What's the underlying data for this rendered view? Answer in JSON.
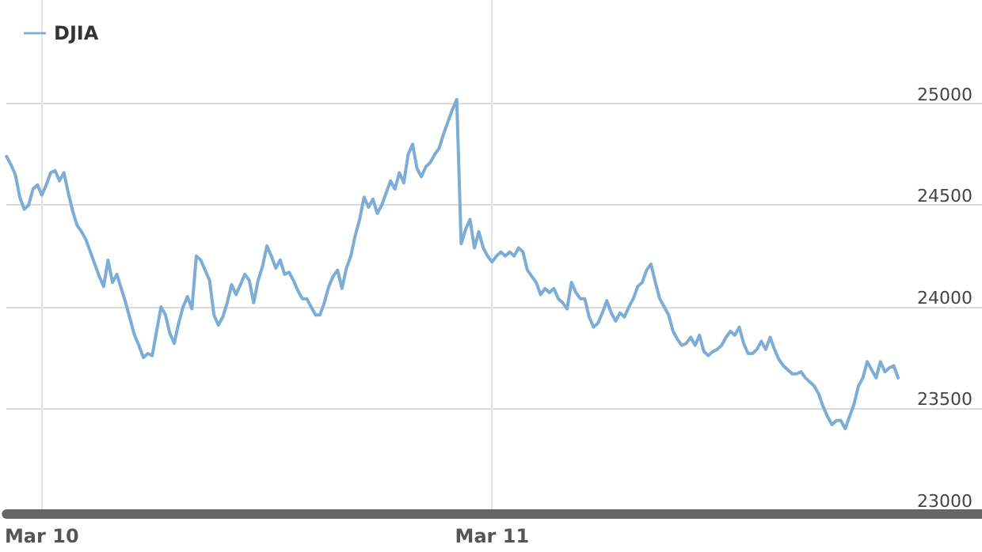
{
  "chart_data": {
    "type": "line",
    "ylim": [
      22980,
      25510
    ],
    "yticks": [
      23000,
      23500,
      24000,
      24500,
      25000
    ],
    "grid": true,
    "legend": "top left",
    "marker": "none",
    "line_style": "solid",
    "categories": [
      null,
      null,
      null,
      null,
      null,
      null,
      null,
      null,
      "Mar 10",
      null,
      null,
      null,
      null,
      null,
      null,
      null,
      null,
      null,
      null,
      null,
      null,
      null,
      null,
      null,
      null,
      null,
      null,
      null,
      null,
      null,
      null,
      null,
      null,
      null,
      null,
      null,
      null,
      null,
      null,
      null,
      null,
      null,
      null,
      null,
      null,
      null,
      null,
      null,
      null,
      null,
      null,
      null,
      null,
      null,
      null,
      null,
      null,
      null,
      null,
      null,
      null,
      null,
      null,
      null,
      null,
      null,
      null,
      null,
      null,
      null,
      null,
      null,
      null,
      null,
      null,
      null,
      null,
      null,
      null,
      null,
      null,
      null,
      null,
      null,
      null,
      null,
      null,
      null,
      null,
      null,
      null,
      null,
      null,
      null,
      null,
      null,
      null,
      null,
      null,
      null,
      null,
      null,
      null,
      null,
      null,
      null,
      null,
      null,
      null,
      null,
      "Mar 11",
      null,
      null,
      null,
      null,
      null,
      null,
      null,
      null,
      null,
      null,
      null,
      null,
      null,
      null,
      null,
      null,
      null,
      null,
      null,
      null,
      null,
      null,
      null,
      null,
      null,
      null,
      null,
      null,
      null,
      null,
      null,
      null,
      null,
      null,
      null,
      null,
      null,
      null,
      null,
      null,
      null,
      null,
      null,
      null,
      null,
      null,
      null,
      null,
      null,
      null,
      null,
      null,
      null,
      null,
      null,
      null,
      null,
      null,
      null,
      null,
      null,
      null,
      null,
      null,
      null,
      null,
      null,
      null,
      null,
      null,
      null,
      null,
      null,
      null,
      null,
      null,
      null,
      null,
      null,
      null,
      null,
      null,
      null,
      null,
      null,
      null,
      null,
      null,
      null,
      null,
      null,
      null,
      null,
      null,
      null,
      null,
      null,
      null,
      null,
      null,
      null,
      null,
      null,
      null,
      null,
      null,
      null,
      null,
      null,
      null,
      null
    ],
    "series": [
      {
        "name": "DJIA",
        "color": "#7badd6",
        "values": [
          24740,
          24700,
          24650,
          24540,
          24480,
          24500,
          24580,
          24600,
          24550,
          24600,
          24660,
          24670,
          24620,
          24660,
          24560,
          24470,
          24400,
          24370,
          24330,
          24270,
          24210,
          24150,
          24100,
          24230,
          24120,
          24160,
          24090,
          24020,
          23940,
          23860,
          23810,
          23750,
          23770,
          23760,
          23880,
          24000,
          23960,
          23870,
          23820,
          23920,
          24000,
          24050,
          23990,
          24250,
          24230,
          24180,
          24130,
          23960,
          23910,
          23950,
          24020,
          24110,
          24060,
          24110,
          24160,
          24130,
          24020,
          24130,
          24200,
          24300,
          24250,
          24190,
          24230,
          24160,
          24170,
          24130,
          24080,
          24040,
          24040,
          24000,
          23960,
          23960,
          24020,
          24100,
          24150,
          24180,
          24090,
          24190,
          24250,
          24350,
          24430,
          24540,
          24490,
          24530,
          24460,
          24500,
          24560,
          24620,
          24580,
          24660,
          24610,
          24750,
          24800,
          24680,
          24640,
          24690,
          24710,
          24750,
          24780,
          24850,
          24910,
          24970,
          25020,
          24310,
          24380,
          24430,
          24290,
          24370,
          24290,
          24250,
          24220,
          24250,
          24270,
          24250,
          24270,
          24250,
          24290,
          24270,
          24180,
          24150,
          24120,
          24060,
          24090,
          24070,
          24090,
          24040,
          24020,
          23990,
          24120,
          24070,
          24040,
          24040,
          23950,
          23900,
          23920,
          23970,
          24030,
          23970,
          23930,
          23970,
          23950,
          24000,
          24040,
          24100,
          24120,
          24180,
          24210,
          24120,
          24040,
          24000,
          23960,
          23880,
          23840,
          23810,
          23820,
          23850,
          23810,
          23860,
          23780,
          23760,
          23780,
          23790,
          23810,
          23850,
          23880,
          23860,
          23900,
          23820,
          23770,
          23770,
          23790,
          23830,
          23790,
          23850,
          23790,
          23740,
          23710,
          23690,
          23670,
          23670,
          23680,
          23650,
          23630,
          23610,
          23570,
          23510,
          23460,
          23420,
          23440,
          23440,
          23400,
          23460,
          23520,
          23610,
          23650,
          23730,
          23690,
          23650,
          23730,
          23680,
          23700,
          23710,
          23650,
          null,
          null,
          null,
          null,
          null,
          null,
          null,
          null,
          null,
          null,
          null,
          null,
          null,
          null,
          null,
          null,
          null,
          null,
          null
        ]
      }
    ]
  }
}
